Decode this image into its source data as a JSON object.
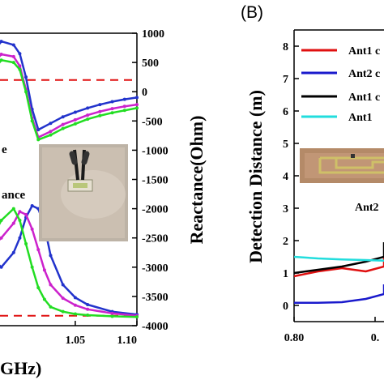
{
  "chart_data": [
    {
      "type": "line",
      "panel": "A (cropped)",
      "xlabel_visible": "GHz)",
      "x_ticks": [
        "1.05",
        "1.10"
      ],
      "y2label": "Reactance(Ohm)",
      "y2_ticks": [
        1000,
        500,
        0,
        -500,
        -1000,
        -1500,
        -2000,
        -2500,
        -3000,
        -3500,
        -4000
      ],
      "y2lim": [
        -4000,
        1000
      ],
      "xlim": [
        0.985,
        1.1
      ],
      "annotations": [
        "e",
        "ance"
      ],
      "reference_line_y": 200,
      "series": [
        {
          "color": "#2233cc",
          "x": [
            0.985,
            0.99,
            1.0,
            1.005,
            1.01,
            1.015,
            1.02,
            1.03,
            1.04,
            1.05,
            1.06,
            1.07,
            1.08,
            1.09,
            1.1
          ],
          "y": [
            720,
            860,
            800,
            650,
            250,
            -300,
            -650,
            -540,
            -430,
            -350,
            -280,
            -220,
            -170,
            -130,
            -100
          ]
        },
        {
          "color": "#cc22cc",
          "x": [
            0.985,
            0.99,
            1.0,
            1.005,
            1.01,
            1.015,
            1.02,
            1.03,
            1.04,
            1.05,
            1.06,
            1.07,
            1.08,
            1.09,
            1.1
          ],
          "y": [
            520,
            640,
            600,
            440,
            40,
            -450,
            -780,
            -680,
            -560,
            -480,
            -400,
            -340,
            -290,
            -250,
            -220
          ]
        },
        {
          "color": "#22dd22",
          "x": [
            0.985,
            0.99,
            1.0,
            1.005,
            1.01,
            1.015,
            1.02,
            1.03,
            1.04,
            1.05,
            1.06,
            1.07,
            1.08,
            1.09,
            1.1
          ],
          "y": [
            400,
            540,
            500,
            380,
            0,
            -500,
            -820,
            -740,
            -630,
            -550,
            -470,
            -410,
            -360,
            -320,
            -280
          ]
        },
        {
          "color": "#2233cc",
          "x": [
            0.985,
            0.99,
            1.0,
            1.005,
            1.01,
            1.015,
            1.02,
            1.025,
            1.03,
            1.04,
            1.05,
            1.06,
            1.08,
            1.1
          ],
          "y": [
            -2900,
            -3000,
            -2750,
            -2500,
            -2150,
            -1950,
            -2000,
            -2300,
            -2800,
            -3300,
            -3520,
            -3640,
            -3760,
            -3810
          ]
        },
        {
          "color": "#cc22cc",
          "x": [
            0.985,
            0.99,
            1.0,
            1.005,
            1.01,
            1.015,
            1.02,
            1.025,
            1.03,
            1.04,
            1.05,
            1.06,
            1.08,
            1.1
          ],
          "y": [
            -2600,
            -2500,
            -2250,
            -2050,
            -2100,
            -2350,
            -2700,
            -3050,
            -3300,
            -3530,
            -3650,
            -3720,
            -3790,
            -3830
          ]
        },
        {
          "color": "#22dd22",
          "x": [
            0.985,
            0.99,
            1.0,
            1.005,
            1.01,
            1.015,
            1.02,
            1.025,
            1.03,
            1.04,
            1.05,
            1.06,
            1.08,
            1.1
          ],
          "y": [
            -2400,
            -2200,
            -2000,
            -2200,
            -2600,
            -3000,
            -3350,
            -3550,
            -3680,
            -3760,
            -3800,
            -3820,
            -3840,
            -3850
          ]
        }
      ]
    },
    {
      "type": "line",
      "panel_label": "(B)",
      "ylabel": "Detection Distance (m)",
      "y_ticks": [
        0,
        1,
        2,
        3,
        4,
        5,
        6,
        7,
        8
      ],
      "ylim": [
        -0.5,
        8.5
      ],
      "x_ticks": [
        "0.80",
        "0."
      ],
      "legend": [
        "Ant1 c",
        "Ant2 c",
        "Ant1 c",
        "Ant1"
      ],
      "inset_label": "Ant2",
      "series": [
        {
          "name": "Ant1 c",
          "color": "#e01010",
          "x": [
            0.8,
            0.82,
            0.84,
            0.86,
            0.88,
            0.9,
            0.92
          ],
          "y": [
            0.9,
            1.05,
            1.15,
            1.05,
            1.2,
            1.35,
            1.5
          ]
        },
        {
          "name": "Ant2 c",
          "color": "#1a1acc",
          "x": [
            0.8,
            0.82,
            0.84,
            0.86,
            0.88,
            0.9,
            0.92
          ],
          "y": [
            0.08,
            0.08,
            0.1,
            0.2,
            0.35,
            0.5,
            0.65
          ]
        },
        {
          "name": "Ant1 c",
          "color": "#000000",
          "x": [
            0.8,
            0.82,
            0.84,
            0.86,
            0.88,
            0.9,
            0.92
          ],
          "y": [
            1.0,
            1.1,
            1.2,
            1.35,
            1.5,
            1.7,
            1.95
          ]
        },
        {
          "name": "Ant1",
          "color": "#22dddd",
          "x": [
            0.8,
            0.82,
            0.84,
            0.86,
            0.88,
            0.9,
            0.92
          ],
          "y": [
            1.5,
            1.45,
            1.42,
            1.4,
            1.38,
            1.37,
            1.36
          ]
        }
      ]
    }
  ]
}
